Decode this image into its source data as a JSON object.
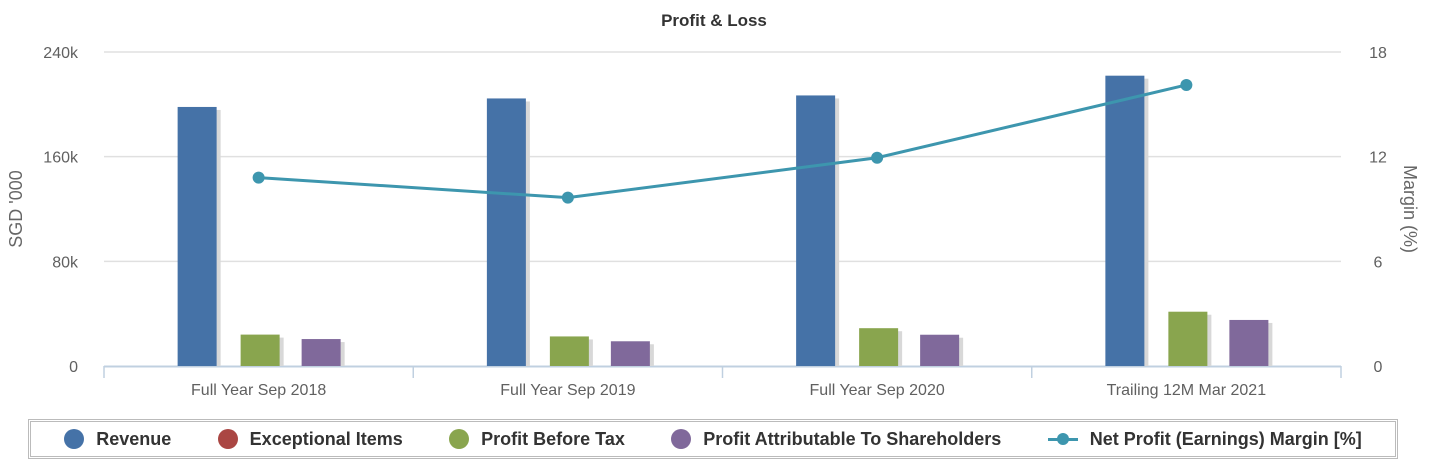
{
  "chart_data": {
    "type": "bar",
    "title": "Profit & Loss",
    "categories": [
      "Full Year Sep 2018",
      "Full Year Sep 2019",
      "Full Year Sep 2020",
      "Trailing 12M Mar 2021"
    ],
    "ylabel": "SGD '000",
    "ylabel_right": "Margin (%)",
    "ylim": [
      0,
      240000
    ],
    "ylim_right": [
      0,
      18
    ],
    "yticks": [
      "0",
      "80k",
      "160k",
      "240k"
    ],
    "yticks_right": [
      "0",
      "6",
      "12",
      "18"
    ],
    "grid": true,
    "legend_placement": "bottom",
    "series": [
      {
        "name": "Revenue",
        "type": "bar",
        "axis": "left",
        "color": "#4572a7",
        "values": [
          198000,
          204500,
          206800,
          221900
        ]
      },
      {
        "name": "Exceptional Items",
        "type": "bar",
        "axis": "left",
        "color": "#aa4643",
        "values": [
          0,
          0,
          0,
          0
        ]
      },
      {
        "name": "Profit Before Tax",
        "type": "bar",
        "axis": "left",
        "color": "#89a54e",
        "values": [
          24000,
          22600,
          28900,
          41500
        ]
      },
      {
        "name": "Profit Attributable To Shareholders",
        "type": "bar",
        "axis": "left",
        "color": "#80699b",
        "values": [
          20600,
          18900,
          23900,
          35200
        ]
      },
      {
        "name": "Net Profit (Earnings) Margin [%]",
        "type": "line",
        "axis": "right",
        "color": "#3d96ae",
        "values": [
          10.8,
          9.65,
          11.94,
          16.11
        ]
      }
    ]
  }
}
